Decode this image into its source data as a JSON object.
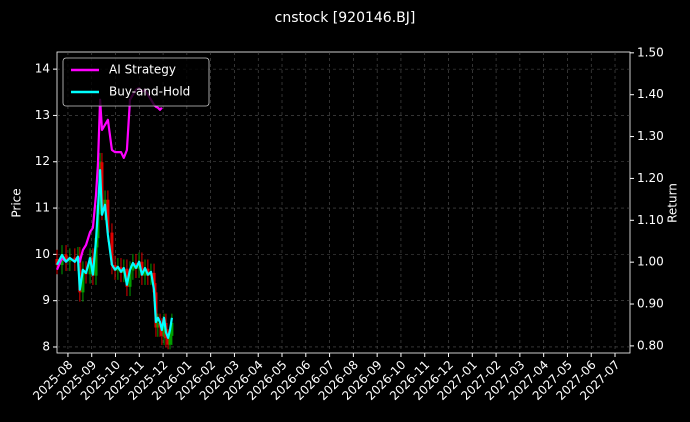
{
  "chart_data": {
    "type": "candlestick",
    "title": "cnstock [920146.BJ]",
    "ylabel": "Price",
    "y2label": "Return",
    "x": [
      -0.46,
      -0.25,
      -0.08,
      0.08,
      0.29,
      0.42,
      0.5,
      0.63,
      0.76,
      0.93,
      1.05,
      1.18,
      1.26,
      1.35,
      1.43,
      1.56,
      1.68,
      1.85,
      1.98,
      2.1,
      2.23,
      2.35,
      2.48,
      2.61,
      2.73,
      2.86,
      2.99,
      3.11,
      3.24,
      3.36,
      3.49,
      3.62,
      3.7,
      3.78,
      3.87,
      3.95,
      4.04,
      4.12,
      4.21,
      4.29,
      4.37
    ],
    "open": [
      9.9,
      9.77,
      10.0,
      9.84,
      9.93,
      9.84,
      9.96,
      9.18,
      9.65,
      9.57,
      9.93,
      9.54,
      10.35,
      11.06,
      11.99,
      10.94,
      11.18,
      10.47,
      9.77,
      9.65,
      9.72,
      9.6,
      9.69,
      9.3,
      9.65,
      9.81,
      9.69,
      9.84,
      9.54,
      9.69,
      9.54,
      9.6,
      9.18,
      8.42,
      8.52,
      8.42,
      8.24,
      8.52,
      8.19,
      8.05,
      8.24
    ],
    "high": [
      10.1,
      10.2,
      10.2,
      10.13,
      10.13,
      10.16,
      10.16,
      9.85,
      9.85,
      10.13,
      10.13,
      10.55,
      11.26,
      12.19,
      12.19,
      11.38,
      11.38,
      10.67,
      9.97,
      9.92,
      9.92,
      9.89,
      9.89,
      9.85,
      10.01,
      10.01,
      10.04,
      10.04,
      9.89,
      9.89,
      9.8,
      9.8,
      9.38,
      8.72,
      8.72,
      8.62,
      8.72,
      8.72,
      8.39,
      8.44,
      8.72
    ],
    "low": [
      9.57,
      9.57,
      9.64,
      9.64,
      9.64,
      9.64,
      8.98,
      8.98,
      9.37,
      9.37,
      9.34,
      9.34,
      10.15,
      10.86,
      10.74,
      10.74,
      10.27,
      9.57,
      9.45,
      9.45,
      9.4,
      9.4,
      9.1,
      9.1,
      9.45,
      9.49,
      9.49,
      9.34,
      9.34,
      9.34,
      9.34,
      8.98,
      8.22,
      8.22,
      8.22,
      8.04,
      8.04,
      7.99,
      7.95,
      7.95,
      8.04
    ],
    "close": [
      9.77,
      10.0,
      9.84,
      9.93,
      9.84,
      9.96,
      9.18,
      9.65,
      9.57,
      9.93,
      9.54,
      10.35,
      11.06,
      11.99,
      10.94,
      11.18,
      10.47,
      9.77,
      9.65,
      9.72,
      9.6,
      9.69,
      9.3,
      9.65,
      9.81,
      9.69,
      9.84,
      9.54,
      9.69,
      9.54,
      9.6,
      9.18,
      8.42,
      8.52,
      8.42,
      8.24,
      8.52,
      8.19,
      8.05,
      8.24,
      8.52
    ],
    "up_color": "#00a000",
    "down_color": "#e00000",
    "series": [
      {
        "name": "AI Strategy",
        "color": "#ff00ff",
        "axis": "y2",
        "values": [
          0.982,
          1.01,
          1.001,
          1.01,
          1.001,
          1.013,
          1.001,
          1.029,
          1.041,
          1.072,
          1.082,
          1.161,
          1.232,
          1.388,
          1.316,
          1.328,
          1.34,
          1.268,
          1.263,
          1.263,
          1.263,
          1.249,
          1.268,
          1.388,
          1.4,
          1.412,
          1.416,
          1.407,
          1.412,
          1.4,
          1.388,
          1.376,
          1.371,
          1.369,
          1.364,
          1.369,
          null,
          null,
          null,
          null,
          null
        ]
      },
      {
        "name": "Buy-and-Hold",
        "color": "#00ffff",
        "axis": "y2",
        "values": [
          0.994,
          1.017,
          1.001,
          1.01,
          1.001,
          1.013,
          0.934,
          0.982,
          0.974,
          1.01,
          0.97,
          1.053,
          1.125,
          1.22,
          1.113,
          1.137,
          1.065,
          0.994,
          0.982,
          0.989,
          0.977,
          0.986,
          0.946,
          0.982,
          0.998,
          0.986,
          1.001,
          0.97,
          0.986,
          0.97,
          0.977,
          0.934,
          0.857,
          0.867,
          0.857,
          0.838,
          0.867,
          0.833,
          0.819,
          0.838,
          0.867
        ]
      }
    ],
    "xlim": [
      -0.46,
      23.63
    ],
    "xticks": [
      {
        "value": 0,
        "label": "2025-08"
      },
      {
        "value": 1,
        "label": "2025-09"
      },
      {
        "value": 2,
        "label": "2025-10"
      },
      {
        "value": 3,
        "label": "2025-11"
      },
      {
        "value": 4,
        "label": "2025-12"
      },
      {
        "value": 5,
        "label": "2026-01"
      },
      {
        "value": 6,
        "label": "2026-02"
      },
      {
        "value": 7,
        "label": "2026-03"
      },
      {
        "value": 8,
        "label": "2026-04"
      },
      {
        "value": 9,
        "label": "2026-05"
      },
      {
        "value": 10,
        "label": "2026-06"
      },
      {
        "value": 11,
        "label": "2026-07"
      },
      {
        "value": 12,
        "label": "2026-08"
      },
      {
        "value": 13,
        "label": "2026-09"
      },
      {
        "value": 14,
        "label": "2026-10"
      },
      {
        "value": 15,
        "label": "2026-11"
      },
      {
        "value": 16,
        "label": "2026-12"
      },
      {
        "value": 17,
        "label": "2027-01"
      },
      {
        "value": 18,
        "label": "2027-02"
      },
      {
        "value": 19,
        "label": "2027-03"
      },
      {
        "value": 20,
        "label": "2027-04"
      },
      {
        "value": 21,
        "label": "2027-05"
      },
      {
        "value": 22,
        "label": "2027-06"
      },
      {
        "value": 23,
        "label": "2027-07"
      }
    ],
    "ylim": [
      7.87,
      14.37
    ],
    "yticks": [
      8,
      9,
      10,
      11,
      12,
      13,
      14
    ],
    "y2lim": [
      0.783,
      1.502
    ],
    "y2ticks": [
      {
        "value": 0.8,
        "label": "0.80"
      },
      {
        "value": 0.9,
        "label": "0.90"
      },
      {
        "value": 1.0,
        "label": "1.00"
      },
      {
        "value": 1.1,
        "label": "1.10"
      },
      {
        "value": 1.2,
        "label": "1.20"
      },
      {
        "value": 1.3,
        "label": "1.30"
      },
      {
        "value": 1.4,
        "label": "1.40"
      },
      {
        "value": 1.5,
        "label": "1.50"
      }
    ],
    "grid": true,
    "legend": "upper left"
  }
}
